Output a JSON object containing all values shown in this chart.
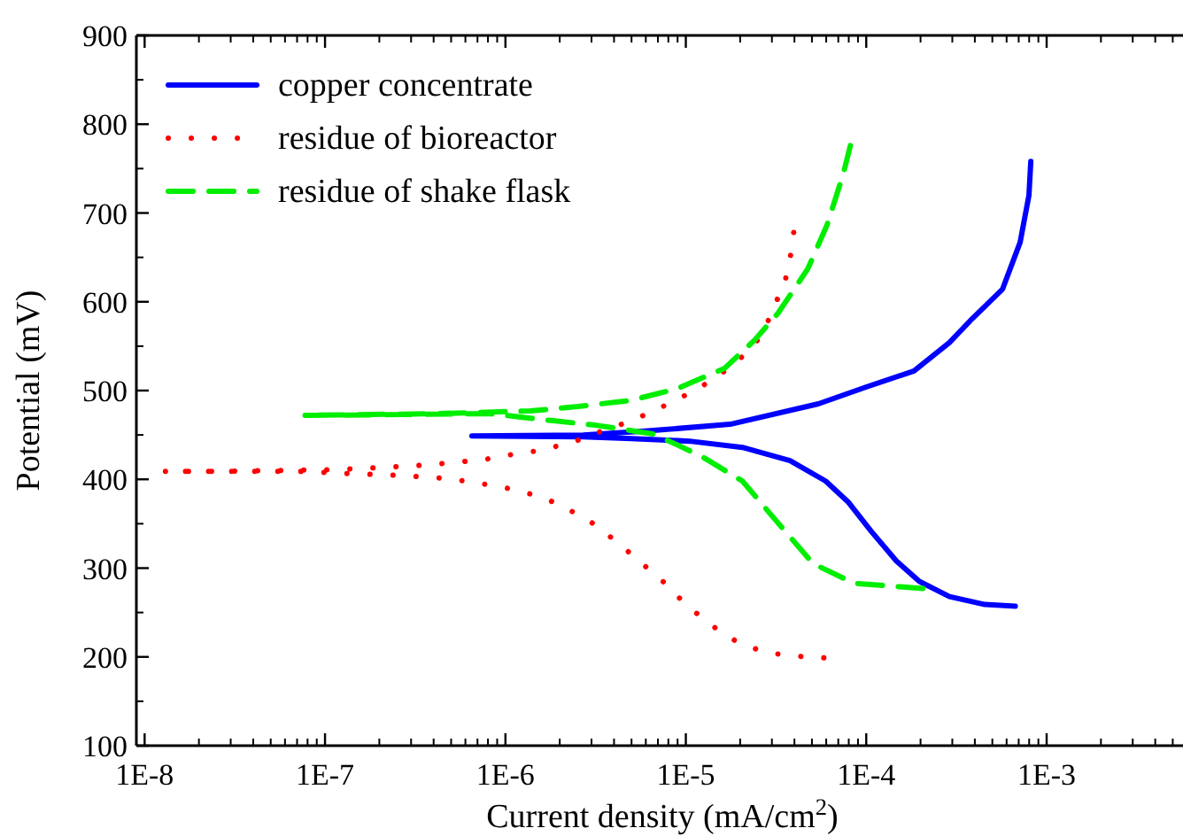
{
  "chart_data": {
    "type": "line",
    "xlabel": "Current density (mA/cm$^{2}$)",
    "ylabel": "Potential (mV)",
    "log": "x",
    "xlim": [
      9e-09,
      0.0057
    ],
    "ylim": [
      100,
      900
    ],
    "xticks": [
      {
        "value": 1e-08,
        "label": "1E-8"
      },
      {
        "value": 1e-07,
        "label": "1E-7"
      },
      {
        "value": 1e-06,
        "label": "1E-6"
      },
      {
        "value": 1e-05,
        "label": "1E-5"
      },
      {
        "value": 0.0001,
        "label": "1E-4"
      },
      {
        "value": 0.001,
        "label": "1E-3"
      }
    ],
    "yticks": [
      100,
      200,
      300,
      400,
      500,
      600,
      700,
      800,
      900
    ],
    "grid": false,
    "legend": "top left",
    "series": [
      {
        "name": "copper concentrate",
        "color": "#0000ff",
        "line_style": "solid",
        "x": [
          0.00067,
          0.000454,
          0.000289,
          0.000197,
          0.000147,
          0.000107,
          7.98e-05,
          5.96e-05,
          3.78e-05,
          2.06e-05,
          1.05e-05,
          4.97e-06,
          2.7e-06,
          6.52e-07,
          2.7e-06,
          5.69e-06,
          1.76e-05,
          5.43e-05,
          0.0001,
          0.000184,
          0.000289,
          0.000387,
          0.000569,
          0.000713,
          0.000798,
          0.000817
        ],
        "values": [
          257,
          259,
          268,
          285,
          308,
          341,
          374,
          398,
          421,
          436,
          443,
          446,
          448,
          449,
          450,
          454,
          462,
          485,
          504,
          522,
          554,
          581,
          614,
          667,
          720,
          758
        ]
      },
      {
        "name": "residue of bioreactor",
        "color": "#ff0000",
        "line_style": "dotted",
        "x": [
          5.82e-05,
          3.96e-05,
          2.76e-05,
          1.92e-05,
          1.4e-05,
          1e-05,
          7.29e-06,
          5.43e-06,
          4.24e-06,
          2.89e-06,
          1.92e-06,
          1.47e-06,
          1.02e-06,
          6.97e-07,
          4.74e-07,
          3.31e-07,
          2.25e-07,
          1.53e-07,
          7.29e-08,
          3.71e-08,
          1.76e-08,
          1.28e-08,
          2.52e-08,
          5.43e-08,
          1.15e-07,
          2.41e-07,
          3.54e-07,
          5.2e-07,
          7.46e-07,
          1.09e-06,
          1.61e-06,
          2.52e-06,
          3.38e-06,
          4.85e-06,
          6.97e-06,
          1e-05,
          1.44e-05,
          1.92e-05,
          2.36e-05,
          2.76e-05,
          3.09e-05,
          3.54e-05,
          3.78e-05,
          3.96e-05
        ],
        "values": [
          199,
          201,
          205,
          217,
          235,
          259,
          287,
          309,
          328,
          354,
          373,
          382,
          390,
          396,
          401,
          403,
          405,
          406,
          409,
          409,
          409,
          409,
          409,
          410,
          411,
          414,
          416,
          419,
          422,
          428,
          433,
          444,
          454,
          465,
          479,
          495,
          513,
          533,
          549,
          571,
          595,
          622,
          648,
          678
        ]
      },
      {
        "name": "residue of shake flask",
        "color": "#00ee00",
        "line_style": "dashed",
        "x": [
          0.000206,
          8.53e-05,
          5.08e-05,
          3.24e-05,
          2.06e-05,
          1.22e-05,
          6.67e-06,
          3.16e-06,
          1.84e-06,
          8.17e-07,
          2.64e-07,
          7.62e-08,
          4.15e-07,
          1.37e-06,
          2.52e-06,
          4.97e-06,
          8.93e-06,
          1.64e-05,
          2.41e-05,
          3.24e-05,
          4.74e-05,
          6.08e-05,
          7.46e-05,
          8.17e-05
        ],
        "values": [
          277,
          283,
          305,
          351,
          398,
          426,
          451,
          461,
          466,
          474,
          473,
          472,
          474,
          477,
          482,
          489,
          502,
          525,
          557,
          587,
          637,
          687,
          744,
          776
        ]
      }
    ]
  }
}
